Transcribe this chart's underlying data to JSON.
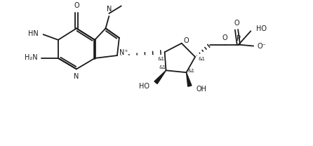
{
  "bg_color": "#ffffff",
  "line_color": "#1a1a1a",
  "line_width": 1.3,
  "font_size": 7.0,
  "fig_width": 4.46,
  "fig_height": 2.08,
  "dpi": 100,
  "xlim": [
    0,
    44.6
  ],
  "ylim": [
    0,
    20.8
  ]
}
